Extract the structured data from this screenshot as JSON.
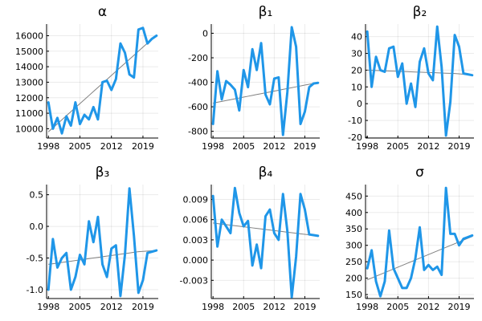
{
  "figure": {
    "background": "#ffffff"
  },
  "chart_data": [
    {
      "type": "line",
      "title": "α",
      "x": [
        1998,
        1999,
        2000,
        2001,
        2002,
        2003,
        2004,
        2005,
        2006,
        2007,
        2008,
        2009,
        2010,
        2011,
        2012,
        2013,
        2014,
        2015,
        2016,
        2017,
        2018,
        2019,
        2020,
        2021,
        2022
      ],
      "series": [
        {
          "values": [
            11700,
            10000,
            10700,
            9700,
            10800,
            10200,
            11700,
            10300,
            10900,
            10600,
            11400,
            10600,
            13000,
            13100,
            12500,
            13200,
            15500,
            14900,
            13500,
            13300,
            16400,
            16500,
            15500,
            15800,
            16000
          ],
          "color": "#1f96e8"
        },
        {
          "values": [
            9800,
            10060,
            10320,
            10580,
            10840,
            11100,
            11360,
            11620,
            11880,
            12140,
            12400,
            12660,
            12920,
            13180,
            13440,
            13700,
            13960,
            14220,
            14480,
            14740,
            15000,
            15260,
            15520,
            15780,
            16040
          ],
          "color": "#808080"
        }
      ],
      "xticks": [
        1998,
        2005,
        2012,
        2019
      ],
      "yticks": [
        10000,
        11000,
        12000,
        13000,
        14000,
        15000,
        16000
      ],
      "xlim": [
        1997.6,
        2022.4
      ],
      "ylim": [
        9400,
        16750
      ],
      "grid": true
    },
    {
      "type": "line",
      "title": "β₁",
      "x": [
        1998,
        1999,
        2000,
        2001,
        2002,
        2003,
        2004,
        2005,
        2006,
        2007,
        2008,
        2009,
        2010,
        2011,
        2012,
        2013,
        2014,
        2015,
        2016,
        2017,
        2018,
        2019,
        2020,
        2021,
        2022
      ],
      "series": [
        {
          "values": [
            -740,
            -310,
            -540,
            -390,
            -420,
            -460,
            -630,
            -300,
            -440,
            -130,
            -300,
            -80,
            -500,
            -580,
            -370,
            -360,
            -830,
            -480,
            50,
            -110,
            -740,
            -640,
            -440,
            -410,
            -405
          ],
          "color": "#1f96e8"
        },
        {
          "values": [
            -570,
            -563,
            -556,
            -549,
            -542,
            -535,
            -528,
            -521,
            -514,
            -507,
            -500,
            -493,
            -486,
            -479,
            -472,
            -465,
            -458,
            -451,
            -444,
            -437,
            -430,
            -423,
            -416,
            -409,
            -405
          ],
          "color": "#808080"
        }
      ],
      "xticks": [
        1998,
        2005,
        2012,
        2019
      ],
      "yticks": [
        -800,
        -600,
        -400,
        -200,
        0
      ],
      "xlim": [
        1997.6,
        2022.4
      ],
      "ylim": [
        -855,
        75
      ],
      "grid": true
    },
    {
      "type": "line",
      "title": "β₂",
      "x": [
        1998,
        1999,
        2000,
        2001,
        2002,
        2003,
        2004,
        2005,
        2006,
        2007,
        2008,
        2009,
        2010,
        2011,
        2012,
        2013,
        2014,
        2015,
        2016,
        2017,
        2018,
        2019,
        2020,
        2021,
        2022
      ],
      "series": [
        {
          "values": [
            43,
            10,
            28,
            20,
            19,
            33,
            34,
            16,
            24,
            0,
            12,
            -2,
            25,
            33,
            18,
            14,
            46,
            22,
            -19,
            1,
            41,
            34,
            18,
            17.5,
            17
          ],
          "color": "#1f96e8"
        },
        {
          "values": [
            20,
            19.9,
            19.8,
            19.7,
            19.6,
            19.5,
            19.4,
            19.3,
            19.2,
            19.1,
            19.0,
            18.9,
            18.8,
            18.7,
            18.6,
            18.5,
            18.4,
            18.3,
            18.2,
            18.1,
            18.0,
            17.8,
            17.6,
            17.4,
            17.2
          ],
          "color": "#808080"
        }
      ],
      "xticks": [
        1998,
        2005,
        2012,
        2019
      ],
      "yticks": [
        -20,
        -10,
        0,
        10,
        20,
        30,
        40
      ],
      "xlim": [
        1997.6,
        2022.4
      ],
      "ylim": [
        -20.5,
        47.5
      ],
      "grid": true
    },
    {
      "type": "line",
      "title": "β₃",
      "x": [
        1998,
        1999,
        2000,
        2001,
        2002,
        2003,
        2004,
        2005,
        2006,
        2007,
        2008,
        2009,
        2010,
        2011,
        2012,
        2013,
        2014,
        2015,
        2016,
        2017,
        2018,
        2019,
        2020,
        2021,
        2022
      ],
      "series": [
        {
          "values": [
            -1.0,
            -0.2,
            -0.65,
            -0.5,
            -0.42,
            -1.0,
            -0.8,
            -0.45,
            -0.6,
            0.08,
            -0.25,
            0.15,
            -0.6,
            -0.8,
            -0.35,
            -0.3,
            -1.1,
            -0.45,
            0.6,
            -0.15,
            -1.05,
            -0.85,
            -0.42,
            -0.4,
            -0.38
          ],
          "color": "#1f96e8"
        },
        {
          "values": [
            -0.6,
            -0.59,
            -0.58,
            -0.57,
            -0.56,
            -0.55,
            -0.54,
            -0.53,
            -0.52,
            -0.51,
            -0.5,
            -0.49,
            -0.48,
            -0.47,
            -0.46,
            -0.45,
            -0.44,
            -0.43,
            -0.42,
            -0.41,
            -0.4,
            -0.395,
            -0.39,
            -0.385,
            -0.38
          ],
          "color": "#808080"
        }
      ],
      "xticks": [
        1998,
        2005,
        2012,
        2019
      ],
      "yticks": [
        -1.0,
        -0.5,
        0.0,
        0.5
      ],
      "tick_labels": [
        "-1.0",
        "-0.5",
        "0.0",
        "0.5"
      ],
      "xlim": [
        1997.6,
        2022.4
      ],
      "ylim": [
        -1.14,
        0.66
      ],
      "grid": true
    },
    {
      "type": "line",
      "title": "β₄",
      "x": [
        1998,
        1999,
        2000,
        2001,
        2002,
        2003,
        2004,
        2005,
        2006,
        2007,
        2008,
        2009,
        2010,
        2011,
        2012,
        2013,
        2014,
        2015,
        2016,
        2017,
        2018,
        2019,
        2020,
        2021,
        2022
      ],
      "series": [
        {
          "values": [
            0.0095,
            0.002,
            0.006,
            0.005,
            0.004,
            0.0107,
            0.007,
            0.005,
            0.0058,
            -0.0008,
            0.0023,
            -0.0012,
            0.0065,
            0.0075,
            0.004,
            0.003,
            0.0098,
            0.0043,
            -0.0055,
            0.0005,
            0.0098,
            0.0075,
            0.0038,
            0.0037,
            0.0036
          ],
          "color": "#1f96e8"
        },
        {
          "values": [
            0.0055,
            0.00542,
            0.00534,
            0.00526,
            0.00518,
            0.0051,
            0.00502,
            0.00494,
            0.00486,
            0.00478,
            0.0047,
            0.00462,
            0.00454,
            0.00446,
            0.00438,
            0.0043,
            0.00422,
            0.00414,
            0.00406,
            0.00398,
            0.0039,
            0.00382,
            0.00375,
            0.00368,
            0.0036
          ],
          "color": "#808080"
        }
      ],
      "xticks": [
        1998,
        2005,
        2012,
        2019
      ],
      "yticks": [
        -0.003,
        0.0,
        0.003,
        0.006,
        0.009
      ],
      "tick_labels": [
        "-0.003",
        "0.000",
        "0.003",
        "0.006",
        "0.009"
      ],
      "xlim": [
        1997.6,
        2022.4
      ],
      "ylim": [
        -0.0057,
        0.0112
      ],
      "grid": true
    },
    {
      "type": "line",
      "title": "σ",
      "x": [
        1998,
        1999,
        2000,
        2001,
        2002,
        2003,
        2004,
        2005,
        2006,
        2007,
        2008,
        2009,
        2010,
        2011,
        2012,
        2013,
        2014,
        2015,
        2016,
        2017,
        2018,
        2019,
        2020,
        2021,
        2022
      ],
      "series": [
        {
          "values": [
            230,
            285,
            190,
            145,
            190,
            345,
            230,
            200,
            170,
            170,
            200,
            260,
            355,
            225,
            240,
            225,
            235,
            210,
            475,
            335,
            335,
            300,
            320,
            325,
            330
          ],
          "color": "#1f96e8"
        },
        {
          "values": [
            195,
            200.5,
            206,
            211.5,
            217,
            222.5,
            228,
            233.5,
            239,
            244.5,
            250,
            255.5,
            261,
            266.5,
            272,
            277.5,
            283,
            288.5,
            294,
            299.5,
            305,
            310.5,
            316,
            321.5,
            327
          ],
          "color": "#808080"
        }
      ],
      "xticks": [
        1998,
        2005,
        2012,
        2019
      ],
      "yticks": [
        150,
        200,
        250,
        300,
        350,
        400,
        450
      ],
      "xlim": [
        1997.6,
        2022.4
      ],
      "ylim": [
        138,
        485
      ],
      "grid": true
    }
  ]
}
